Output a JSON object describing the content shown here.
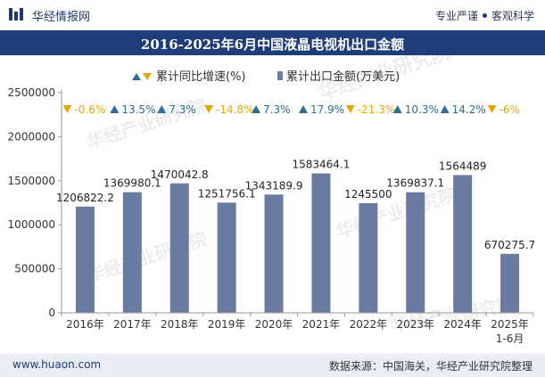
{
  "header": {
    "brand": "华经情报网",
    "tag1": "专业严谨",
    "tag2": "客观科学"
  },
  "title": "2016-2025年6月中国液晶电视机出口金额",
  "watermark": {
    "cn": "华经产业研究院",
    "url": "www.huaon.com"
  },
  "footer": {
    "site": "www.huaon.com",
    "source": "数据来源：中国海关，华经产业研究院整理"
  },
  "colors": {
    "bar": "#6a7ba2",
    "up": "#2d6f8f",
    "down": "#e0a800",
    "title_bg": "#1f3d78",
    "footer_bg": "#e9eef6"
  },
  "chart_data": {
    "type": "bar",
    "categories": [
      "2016年",
      "2017年",
      "2018年",
      "2019年",
      "2020年",
      "2021年",
      "2022年",
      "2023年",
      "2024年",
      "2025年\n1-6月"
    ],
    "series": [
      {
        "name": "累计出口金额(万美元)",
        "values": [
          1206822.2,
          1369980.1,
          1470042.8,
          1251756.1,
          1343189.9,
          1583464.1,
          1245500,
          1369837.1,
          1564489,
          670275.7
        ]
      },
      {
        "name": "累计同比增速(%)",
        "values": [
          -0.6,
          13.5,
          7.3,
          -14.8,
          7.3,
          17.9,
          -21.3,
          10.3,
          14.2,
          -6
        ]
      }
    ],
    "value_labels": [
      "1206822.2",
      "1369980.1",
      "1470042.8",
      "1251756.1",
      "1343189.9",
      "1583464.1",
      "1245500",
      "1369837.1",
      "1564489",
      "670275.7"
    ],
    "growth_labels": [
      "-0.6%",
      "13.5%",
      "7.3%",
      "-14.8%",
      "7.3%",
      "17.9%",
      "-21.3%",
      "10.3%",
      "14.2%",
      "-6%"
    ],
    "y_ticks": [
      "0",
      "500000",
      "1000000",
      "1500000",
      "2000000",
      "2500000"
    ],
    "ylim": [
      0,
      2500000
    ],
    "legend": [
      "累计同比增速(%)",
      "累计出口金额(万美元)"
    ],
    "legend_position": "top-center",
    "grid": false
  }
}
